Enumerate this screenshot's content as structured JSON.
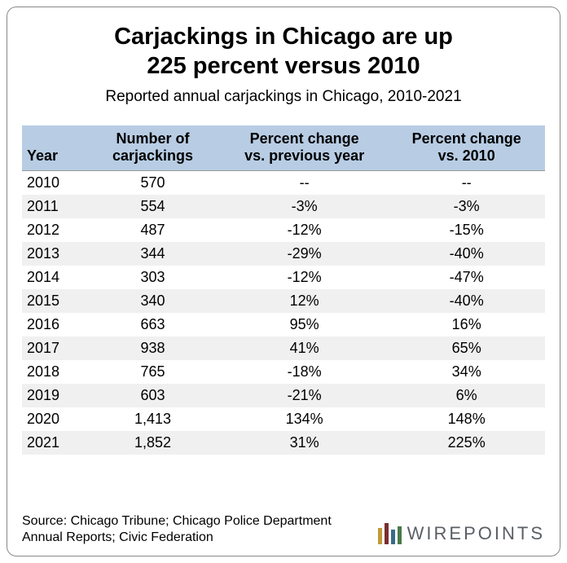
{
  "title_line1": "Carjackings in Chicago are up",
  "title_line2": "225 percent versus 2010",
  "subtitle": "Reported annual carjackings in Chicago, 2010-2021",
  "columns": [
    "Year",
    "Number of carjackings",
    "Percent change vs. previous year",
    "Percent change vs. 2010"
  ],
  "rows": [
    {
      "year": "2010",
      "count": "570",
      "pct_prev": "--",
      "pct_2010": "--"
    },
    {
      "year": "2011",
      "count": "554",
      "pct_prev": "-3%",
      "pct_2010": "-3%"
    },
    {
      "year": "2012",
      "count": "487",
      "pct_prev": "-12%",
      "pct_2010": "-15%"
    },
    {
      "year": "2013",
      "count": "344",
      "pct_prev": "-29%",
      "pct_2010": "-40%"
    },
    {
      "year": "2014",
      "count": "303",
      "pct_prev": "-12%",
      "pct_2010": "-47%"
    },
    {
      "year": "2015",
      "count": "340",
      "pct_prev": "12%",
      "pct_2010": "-40%"
    },
    {
      "year": "2016",
      "count": "663",
      "pct_prev": "95%",
      "pct_2010": "16%"
    },
    {
      "year": "2017",
      "count": "938",
      "pct_prev": "41%",
      "pct_2010": "65%"
    },
    {
      "year": "2018",
      "count": "765",
      "pct_prev": "-18%",
      "pct_2010": "34%"
    },
    {
      "year": "2019",
      "count": "603",
      "pct_prev": "-21%",
      "pct_2010": "6%"
    },
    {
      "year": "2020",
      "count": "1,413",
      "pct_prev": "134%",
      "pct_2010": "148%"
    },
    {
      "year": "2021",
      "count": "1,852",
      "pct_prev": "31%",
      "pct_2010": "225%"
    }
  ],
  "source": "Source: Chicago Tribune; Chicago Police Department Annual Reports; Civic Federation",
  "logo_text": "WIREPOINTS",
  "styling": {
    "header_bg": "#b8cde4",
    "row_alt_bg": "#f0f0f0",
    "border_color": "#888888",
    "font_family": "Arial",
    "title_fontsize": 29,
    "subtitle_fontsize": 19,
    "body_fontsize": 18,
    "source_fontsize": 16,
    "col_widths_pct": [
      12,
      26,
      32,
      30
    ],
    "logo_bar_colors": [
      "#c09a3a",
      "#7b2e2e",
      "#3a6a8a",
      "#4a7a4a"
    ]
  }
}
